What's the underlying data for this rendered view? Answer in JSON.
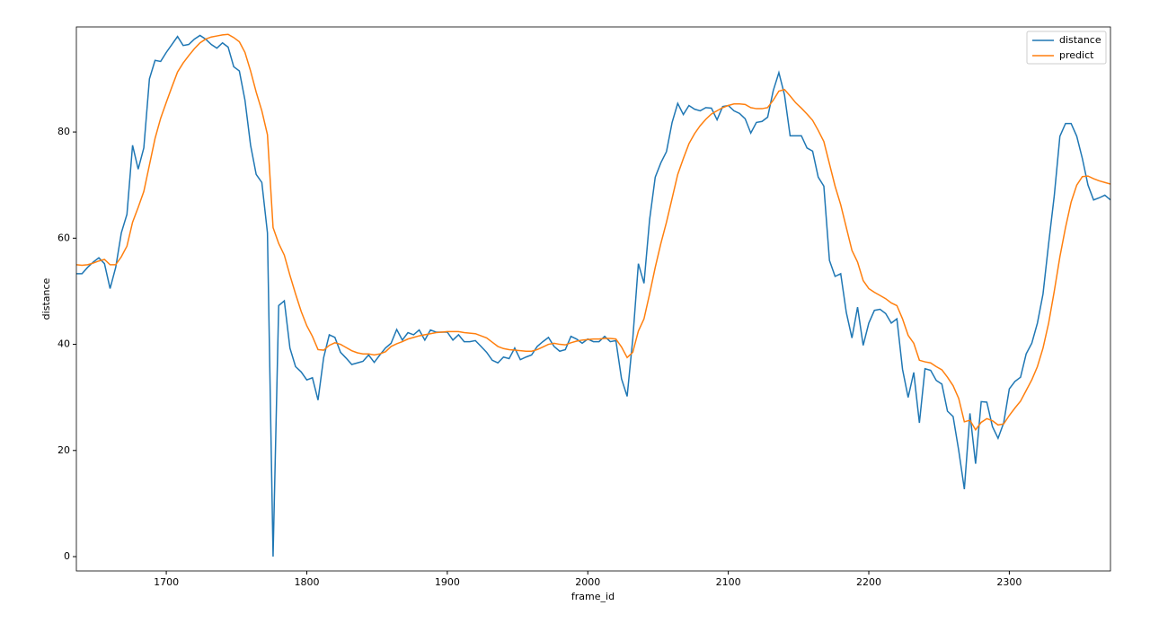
{
  "chart_data": {
    "type": "line",
    "x_label": "frame_id",
    "y_label": "distance",
    "x": [
      1636,
      1640,
      1644,
      1648,
      1652,
      1656,
      1660,
      1664,
      1668,
      1672,
      1676,
      1680,
      1684,
      1688,
      1692,
      1696,
      1700,
      1704,
      1708,
      1712,
      1716,
      1720,
      1724,
      1728,
      1732,
      1736,
      1740,
      1744,
      1748,
      1752,
      1756,
      1760,
      1764,
      1768,
      1772,
      1776,
      1780,
      1784,
      1788,
      1792,
      1796,
      1800,
      1804,
      1808,
      1812,
      1816,
      1820,
      1824,
      1828,
      1832,
      1836,
      1840,
      1844,
      1848,
      1852,
      1856,
      1860,
      1864,
      1868,
      1872,
      1876,
      1880,
      1884,
      1888,
      1892,
      1896,
      1900,
      1904,
      1908,
      1912,
      1916,
      1920,
      1924,
      1928,
      1932,
      1936,
      1940,
      1944,
      1948,
      1952,
      1956,
      1960,
      1964,
      1968,
      1972,
      1976,
      1980,
      1984,
      1988,
      1992,
      1996,
      2000,
      2004,
      2008,
      2012,
      2016,
      2020,
      2024,
      2028,
      2032,
      2036,
      2040,
      2044,
      2048,
      2052,
      2056,
      2060,
      2064,
      2068,
      2072,
      2076,
      2080,
      2084,
      2088,
      2092,
      2096,
      2100,
      2104,
      2108,
      2112,
      2116,
      2120,
      2124,
      2128,
      2132,
      2136,
      2140,
      2144,
      2148,
      2152,
      2156,
      2160,
      2164,
      2168,
      2172,
      2176,
      2180,
      2184,
      2188,
      2192,
      2196,
      2200,
      2204,
      2208,
      2212,
      2216,
      2220,
      2224,
      2228,
      2232,
      2236,
      2240,
      2244,
      2248,
      2252,
      2256,
      2260,
      2264,
      2268,
      2272,
      2276,
      2280,
      2284,
      2288,
      2292,
      2296,
      2300,
      2304,
      2308,
      2312,
      2316,
      2320,
      2324,
      2328,
      2332,
      2336,
      2340,
      2344,
      2348,
      2352,
      2356,
      2360,
      2364,
      2368,
      2372
    ],
    "series": [
      {
        "name": "distance",
        "color": "#1f77b4",
        "values": [
          53.3,
          53.3,
          54.5,
          55.5,
          56.3,
          55.2,
          50.5,
          54.5,
          61,
          64.5,
          77.5,
          73,
          77,
          90,
          93.5,
          93.3,
          95,
          96.5,
          98,
          96.3,
          96.5,
          97.5,
          98.2,
          97.5,
          96.5,
          95.8,
          96.8,
          96,
          92.3,
          91.5,
          86,
          77.5,
          72,
          70.5,
          61,
          0,
          47.3,
          48.2,
          39.3,
          35.8,
          34.8,
          33.3,
          33.7,
          29.5,
          37.5,
          41.8,
          41.3,
          38.5,
          37.4,
          36.2,
          36.5,
          36.8,
          38,
          36.6,
          38,
          39.3,
          40.2,
          42.8,
          40.8,
          42.2,
          41.8,
          42.7,
          40.8,
          42.7,
          42.3,
          42.3,
          42.3,
          40.8,
          41.8,
          40.5,
          40.5,
          40.7,
          39.6,
          38.5,
          37,
          36.5,
          37.6,
          37.3,
          39.3,
          37.1,
          37.6,
          38,
          39.6,
          40.5,
          41.3,
          39.6,
          38.7,
          39,
          41.5,
          41,
          40.2,
          41,
          40.5,
          40.5,
          41.5,
          40.5,
          40.7,
          33.5,
          30.2,
          41,
          55.2,
          51.5,
          63.5,
          71.5,
          74.2,
          76.3,
          81.8,
          85.4,
          83.3,
          85,
          84.3,
          84,
          84.6,
          84.5,
          82.3,
          84.8,
          85,
          84,
          83.5,
          82.5,
          79.8,
          81.8,
          82,
          82.8,
          87.8,
          91.2,
          87,
          79.3,
          79.3,
          79.3,
          77,
          76.4,
          71.5,
          69.8,
          55.8,
          52.8,
          53.3,
          46,
          41.2,
          47,
          39.8,
          44,
          46.4,
          46.6,
          45.8,
          44,
          44.8,
          35.3,
          30,
          34.7,
          25.2,
          35.4,
          35.1,
          33.2,
          32.5,
          27.4,
          26.4,
          20,
          12.7,
          27,
          17.5,
          29.2,
          29.1,
          24.5,
          22.3,
          25.2,
          31.6,
          33,
          33.8,
          38.2,
          40.2,
          44,
          49.5,
          59,
          68,
          79.2,
          81.6,
          81.6,
          79.2,
          75,
          70,
          67.2,
          67.6,
          68.1,
          67.2
        ]
      },
      {
        "name": "predict",
        "color": "#ff7f0e",
        "values": [
          55,
          54.9,
          55,
          55.3,
          55.7,
          56,
          55,
          55,
          56.5,
          58.5,
          63,
          65.8,
          68.8,
          73.8,
          78.8,
          82.6,
          85.6,
          88.5,
          91.3,
          93,
          94.4,
          95.7,
          96.8,
          97.5,
          97.9,
          98.1,
          98.3,
          98.4,
          97.8,
          97,
          95,
          91.5,
          87.5,
          84,
          79.5,
          62,
          59,
          56.8,
          53,
          49.5,
          46.2,
          43.5,
          41.5,
          39,
          38.9,
          39.8,
          40.3,
          40,
          39.4,
          38.8,
          38.4,
          38.2,
          38.2,
          38,
          38.2,
          38.6,
          39.6,
          40.1,
          40.5,
          41,
          41.3,
          41.6,
          41.8,
          42,
          42.2,
          42.3,
          42.4,
          42.4,
          42.4,
          42.2,
          42.1,
          42,
          41.6,
          41.2,
          40.4,
          39.6,
          39.2,
          39,
          38.9,
          38.8,
          38.7,
          38.7,
          39,
          39.5,
          40,
          40.2,
          40,
          39.9,
          40.3,
          40.6,
          40.8,
          40.9,
          41,
          41,
          41.1,
          41.1,
          41,
          39.5,
          37.5,
          38.5,
          42.5,
          44.8,
          49.5,
          54.5,
          59,
          63,
          67.5,
          72,
          75,
          77.8,
          79.7,
          81.2,
          82.4,
          83.4,
          84,
          84.6,
          85,
          85.3,
          85.3,
          85.2,
          84.6,
          84.4,
          84.4,
          84.6,
          86,
          87.7,
          88,
          86.8,
          85.5,
          84.5,
          83.4,
          82.2,
          80.3,
          78.2,
          74,
          69.8,
          66.3,
          62,
          57.7,
          55.5,
          52,
          50.5,
          49.8,
          49.2,
          48.6,
          47.8,
          47.3,
          44.8,
          41.7,
          40.2,
          37,
          36.7,
          36.5,
          35.8,
          35.2,
          33.8,
          32.2,
          29.8,
          25.4,
          25.7,
          23.9,
          25.3,
          26,
          25.6,
          24.8,
          25,
          26.6,
          28,
          29.3,
          31.3,
          33.3,
          35.8,
          39.3,
          44,
          50,
          56.5,
          62,
          66.8,
          70,
          71.6,
          71.7,
          71.2,
          70.8,
          70.5,
          70.2
        ]
      }
    ],
    "xlim": [
      1636,
      2372
    ],
    "ylim": [
      -2.7,
      99.8
    ],
    "xticks": [
      1700,
      1800,
      1900,
      2000,
      2100,
      2200,
      2300
    ],
    "yticks": [
      0,
      20,
      40,
      60,
      80
    ],
    "legend": "upper right"
  }
}
